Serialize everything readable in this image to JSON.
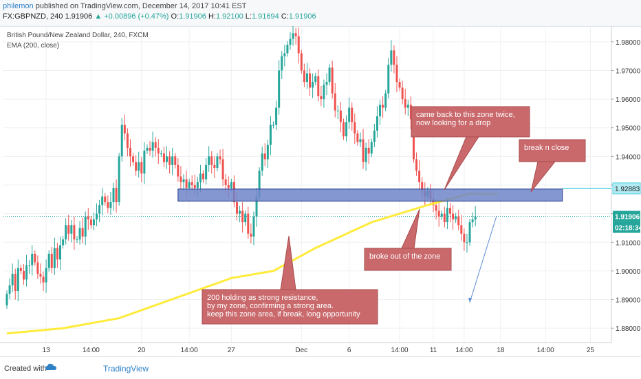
{
  "header": {
    "user": "philemon",
    "published": "published on TradingView.com, December 14, 2017 10:41 EST",
    "symbol": "FX:GBPNZD, 240",
    "last": "1.91906",
    "change": "▲ +0.00896 (+0.47%)",
    "o_label": "O:",
    "o_val": "1.91906",
    "h_label": "H:",
    "h_val": "1.92100",
    "l_label": "L:",
    "l_val": "1.91694",
    "c_label": "C:",
    "c_val": "1.91906"
  },
  "legend": {
    "title": "British Pound/New Zealand Dollar, 240, FXCM",
    "indicator": "EMA (200, close)"
  },
  "annotations": {
    "came_back": "came back to this zone twice,\nnow looking for a drop",
    "break_close": "break n close",
    "broke_out": "broke out of the zone",
    "ema_note": "200 holding as strong resistance,\nby my zone, confirming a strong area.\nkeep this zone area, if break, long opportunity"
  },
  "price_axis": {
    "zone_label": "1.92883",
    "last_label": "1.91906",
    "timer_label": "02:18:34"
  },
  "footer": {
    "created": "Created with",
    "brand": "TradingView"
  },
  "colors": {
    "up": "#26a69a",
    "down": "#ef5350",
    "ema": "#ffeb3b",
    "zone_fill": "#6f85c9",
    "zone_stroke": "#1e3a8a",
    "callout": "#c9696c",
    "zone_line": "#4dd0e1",
    "last_price": "#26a69a"
  },
  "chart_data": {
    "type": "candlestick",
    "title": "British Pound/New Zealand Dollar, 240, FXCM",
    "ylim": [
      1.875,
      1.985
    ],
    "y_ticks": [
      1.88,
      1.89,
      1.9,
      1.91,
      1.92,
      1.93,
      1.94,
      1.95,
      1.96,
      1.97,
      1.98
    ],
    "y_tick_labels": [
      "1.88000",
      "1.89000",
      "1.90000",
      "1.91000",
      "1.92000",
      "1.93000",
      "1.94000",
      "1.95000",
      "1.96000",
      "1.97000",
      "1.98000"
    ],
    "x_ticks": [
      "13",
      "14:00",
      "20",
      "14:00",
      "27",
      "Dec",
      "6",
      "14:00",
      "11",
      "14:00",
      "18",
      "14:00",
      "25"
    ],
    "x_tick_index": [
      14,
      30,
      48,
      65,
      80,
      105,
      122,
      140,
      152,
      163,
      176,
      192,
      208
    ],
    "zone": {
      "low": 1.9244,
      "high": 1.9286,
      "start_index": 61,
      "end_index": 198
    },
    "series_close": [
      1.892,
      1.895,
      1.899,
      1.893,
      1.901,
      1.9,
      1.897,
      1.902,
      1.902,
      1.906,
      1.903,
      1.899,
      1.898,
      1.896,
      1.901,
      1.906,
      1.901,
      1.908,
      1.904,
      1.909,
      1.911,
      1.916,
      1.913,
      1.916,
      1.911,
      1.911,
      1.915,
      1.912,
      1.919,
      1.918,
      1.916,
      1.918,
      1.92,
      1.923,
      1.926,
      1.924,
      1.922,
      1.924,
      1.929,
      1.924,
      1.94,
      1.951,
      1.948,
      1.943,
      1.94,
      1.938,
      1.935,
      1.938,
      1.934,
      1.942,
      1.943,
      1.942,
      1.945,
      1.943,
      1.941,
      1.941,
      1.938,
      1.94,
      1.937,
      1.94,
      1.937,
      1.933,
      1.931,
      1.932,
      1.929,
      1.931,
      1.93,
      1.929,
      1.931,
      1.934,
      1.932,
      1.937,
      1.94,
      1.937,
      1.936,
      1.94,
      1.939,
      1.932,
      1.93,
      1.929,
      1.931,
      1.924,
      1.92,
      1.921,
      1.917,
      1.92,
      1.913,
      1.912,
      1.919,
      1.926,
      1.935,
      1.941,
      1.939,
      1.944,
      1.951,
      1.951,
      1.957,
      1.97,
      1.975,
      1.976,
      1.979,
      1.981,
      1.983,
      1.982,
      1.976,
      1.97,
      1.966,
      1.969,
      1.964,
      1.966,
      1.968,
      1.961,
      1.96,
      1.965,
      1.966,
      1.971,
      1.962,
      1.956,
      1.956,
      1.952,
      1.947,
      1.952,
      1.957,
      1.952,
      1.948,
      1.945,
      1.946,
      1.938,
      1.943,
      1.941,
      1.945,
      1.949,
      1.954,
      1.958,
      1.957,
      1.962,
      1.972,
      1.977,
      1.972,
      1.966,
      1.964,
      1.96,
      1.957,
      1.958,
      1.953,
      1.939,
      1.935,
      1.931,
      1.928,
      1.926,
      1.928,
      1.925,
      1.923,
      1.921,
      1.919,
      1.92,
      1.917,
      1.922,
      1.92,
      1.918,
      1.919,
      1.916,
      1.913,
      1.91,
      1.91,
      1.917,
      1.918,
      1.919
    ]
  }
}
